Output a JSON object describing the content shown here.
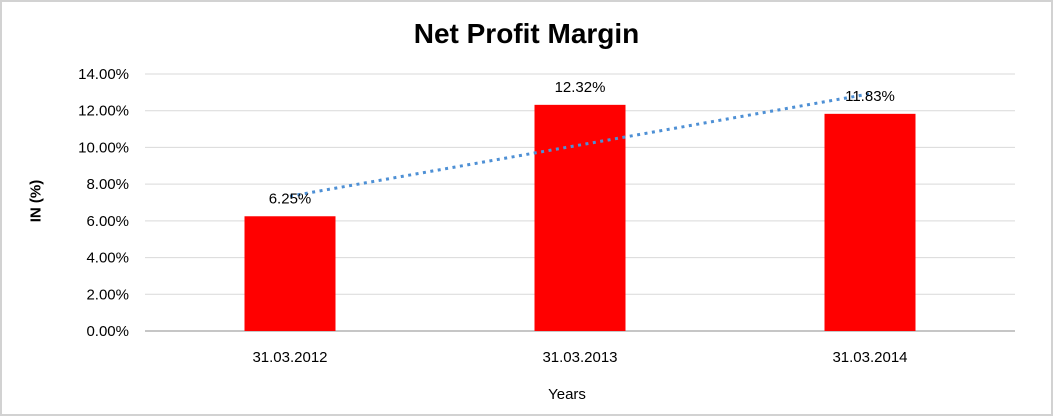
{
  "chart_data": {
    "type": "bar",
    "title": "Net Profit Margin",
    "xlabel": "Years",
    "ylabel": "IN (%)",
    "categories": [
      "31.03.2012",
      "31.03.2013",
      "31.03.2014"
    ],
    "values": [
      6.25,
      12.32,
      11.83
    ],
    "data_labels": [
      "6.25%",
      "12.32%",
      "11.83%"
    ],
    "ylim": [
      0,
      14
    ],
    "ytick_values": [
      0,
      2,
      4,
      6,
      8,
      10,
      12,
      14
    ],
    "ytick_labels": [
      "0.00%",
      "2.00%",
      "4.00%",
      "6.00%",
      "8.00%",
      "10.00%",
      "12.00%",
      "14.00%"
    ],
    "grid": true,
    "legend": false,
    "bar_color": "#ff0000",
    "trendline": {
      "type": "linear",
      "style": "dotted",
      "color": "#4e90d5"
    }
  },
  "colors": {
    "background": "#ffffff",
    "frame_border": "#d2d2d2",
    "gridline": "#d9d9d9",
    "axis_line": "#c6c6c6",
    "text": "#000000"
  }
}
